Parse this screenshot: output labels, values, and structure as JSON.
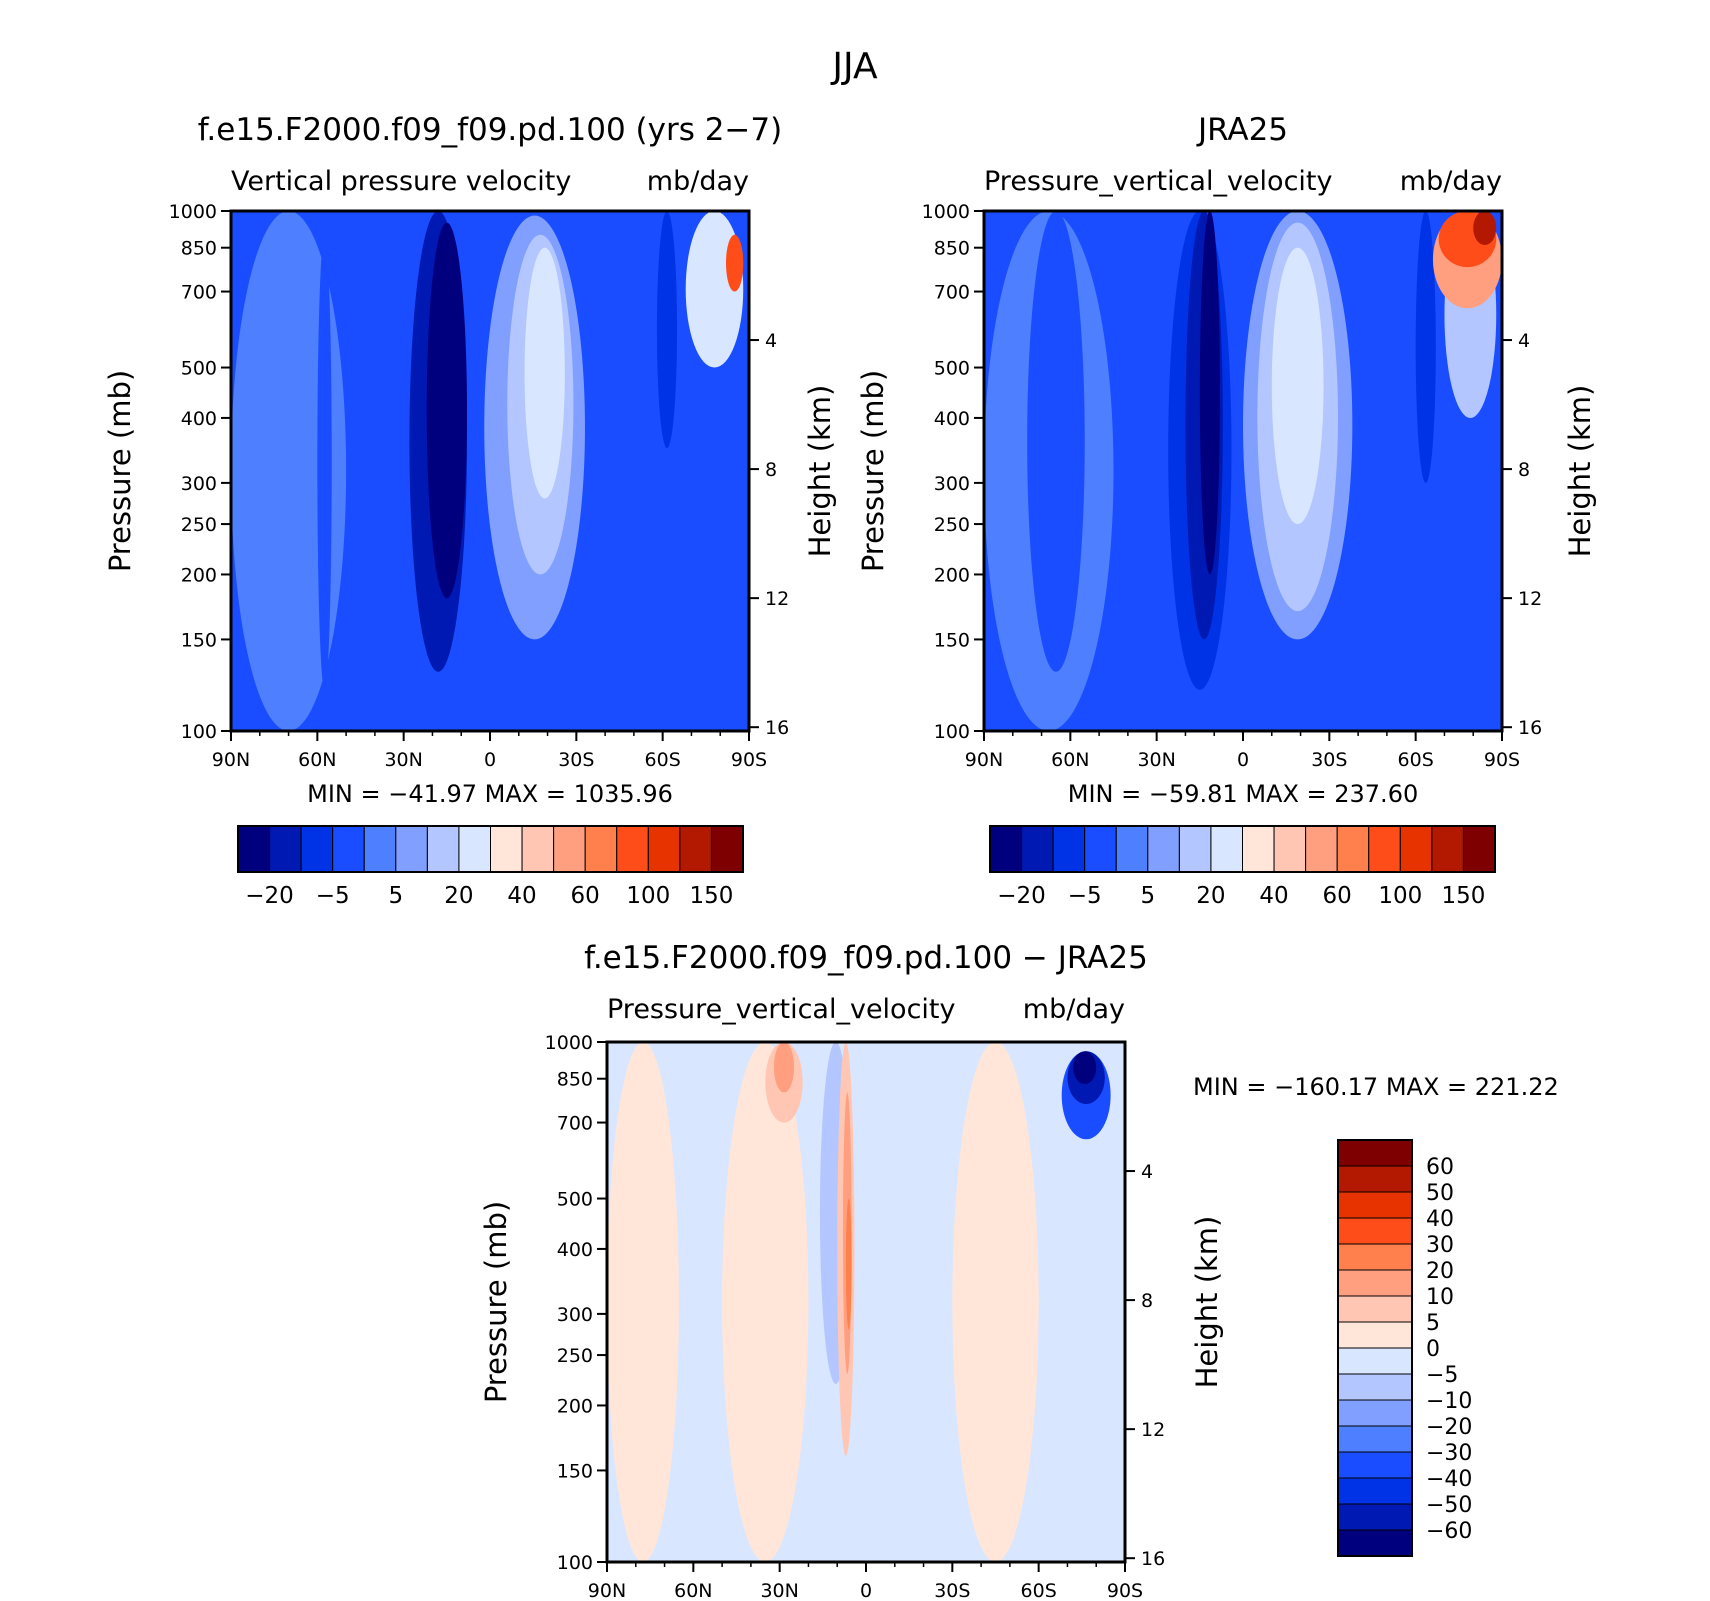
{
  "figure_title": "JJA",
  "colors": {
    "model_palette": [
      "#00007f",
      "#0019b3",
      "#0033e6",
      "#1a4dff",
      "#4d7fff",
      "#809fff",
      "#b3c6ff",
      "#d9e6ff",
      "#ffe6d9",
      "#ffc6b3",
      "#ff9f80",
      "#ff7f4d",
      "#ff4d1a",
      "#e63300",
      "#b31900",
      "#7f0000"
    ],
    "diff_palette": [
      "#00007f",
      "#0019b3",
      "#0033e6",
      "#1a4dff",
      "#4d7fff",
      "#809fff",
      "#b3c6ff",
      "#d9e6ff",
      "#ffe6d9",
      "#ffc6b3",
      "#ff9f80",
      "#ff7f4d",
      "#ff4d1a",
      "#e63300",
      "#b31900",
      "#7f0000"
    ]
  },
  "chart_data": [
    {
      "type": "heatmap",
      "title": "f.e15.F2000.f09_f09.pd.100 (yrs 2−7)",
      "subtitle_left": "Vertical pressure velocity",
      "subtitle_right": "mb/day",
      "ylabel": "Pressure (mb)",
      "ylabel_right": "Height (km)",
      "x_ticks": [
        "90N",
        "60N",
        "30N",
        "0",
        "30S",
        "60S",
        "90S"
      ],
      "y_ticks": [
        "100",
        "150",
        "200",
        "250",
        "300",
        "400",
        "500",
        "700",
        "850",
        "1000"
      ],
      "y_ticks_right": [
        "16",
        "12",
        "8",
        "4"
      ],
      "xlim": [
        90,
        -90
      ],
      "ylim": [
        1000,
        100
      ],
      "y_scale": "log",
      "stats": "MIN = −41.97   MAX = 1035.96",
      "min": -41.97,
      "max": 1035.96,
      "colorbar_labels": [
        "−20",
        "−5",
        "5",
        "20",
        "40",
        "60",
        "100",
        "150"
      ],
      "field": [
        {
          "lat": [
            90,
            50
          ],
          "p": [
            1000,
            100
          ],
          "level": 4
        },
        {
          "lat": [
            60,
            55
          ],
          "p": [
            900,
            120
          ],
          "level": 3
        },
        {
          "lat": [
            28,
            8
          ],
          "p": [
            1000,
            130
          ],
          "level": 1
        },
        {
          "lat": [
            22,
            8
          ],
          "p": [
            950,
            180
          ],
          "level": 0
        },
        {
          "lat": [
            2,
            -33
          ],
          "p": [
            980,
            150
          ],
          "level": 5
        },
        {
          "lat": [
            -6,
            -29
          ],
          "p": [
            900,
            200
          ],
          "level": 6
        },
        {
          "lat": [
            -12,
            -26
          ],
          "p": [
            850,
            280
          ],
          "level": 7
        },
        {
          "lat": [
            -58,
            -65
          ],
          "p": [
            1000,
            350
          ],
          "level": 2
        },
        {
          "lat": [
            -68,
            -88
          ],
          "p": [
            1000,
            500
          ],
          "level": 7
        },
        {
          "lat": [
            -82,
            -88
          ],
          "p": [
            900,
            700
          ],
          "level": 12
        }
      ]
    },
    {
      "type": "heatmap",
      "title": "JRA25",
      "subtitle_left": "Pressure_vertical_velocity",
      "subtitle_right": "mb/day",
      "ylabel": "Pressure (mb)",
      "ylabel_right": "Height (km)",
      "x_ticks": [
        "90N",
        "60N",
        "30N",
        "0",
        "30S",
        "60S",
        "90S"
      ],
      "y_ticks": [
        "100",
        "150",
        "200",
        "250",
        "300",
        "400",
        "500",
        "700",
        "850",
        "1000"
      ],
      "y_ticks_right": [
        "16",
        "12",
        "8",
        "4"
      ],
      "xlim": [
        90,
        -90
      ],
      "ylim": [
        1000,
        100
      ],
      "y_scale": "log",
      "stats": "MIN = −59.81   MAX = 237.60",
      "min": -59.81,
      "max": 237.6,
      "colorbar_labels": [
        "−20",
        "−5",
        "5",
        "20",
        "40",
        "60",
        "100",
        "150"
      ],
      "field": [
        {
          "lat": [
            90,
            45
          ],
          "p": [
            1000,
            100
          ],
          "level": 4
        },
        {
          "lat": [
            75,
            55
          ],
          "p": [
            1000,
            130
          ],
          "level": 3
        },
        {
          "lat": [
            26,
            4
          ],
          "p": [
            1000,
            120
          ],
          "level": 2
        },
        {
          "lat": [
            20,
            7
          ],
          "p": [
            1000,
            150
          ],
          "level": 1
        },
        {
          "lat": [
            15,
            8
          ],
          "p": [
            1000,
            200
          ],
          "level": 0
        },
        {
          "lat": [
            0,
            -38
          ],
          "p": [
            1000,
            150
          ],
          "level": 5
        },
        {
          "lat": [
            -5,
            -33
          ],
          "p": [
            950,
            170
          ],
          "level": 6
        },
        {
          "lat": [
            -10,
            -28
          ],
          "p": [
            850,
            250
          ],
          "level": 7
        },
        {
          "lat": [
            -60,
            -67
          ],
          "p": [
            1000,
            300
          ],
          "level": 2
        },
        {
          "lat": [
            -70,
            -88
          ],
          "p": [
            1000,
            400
          ],
          "level": 6
        },
        {
          "lat": [
            -66,
            -90
          ],
          "p": [
            1000,
            650
          ],
          "level": 10
        },
        {
          "lat": [
            -68,
            -88
          ],
          "p": [
            1000,
            780
          ],
          "level": 12
        },
        {
          "lat": [
            -80,
            -88
          ],
          "p": [
            1000,
            860
          ],
          "level": 14
        }
      ]
    },
    {
      "type": "heatmap",
      "title": "f.e15.F2000.f09_f09.pd.100 − JRA25",
      "subtitle_left": "Pressure_vertical_velocity",
      "subtitle_right": "mb/day",
      "ylabel": "Pressure (mb)",
      "ylabel_right": "Height (km)",
      "x_ticks": [
        "90N",
        "60N",
        "30N",
        "0",
        "30S",
        "60S",
        "90S"
      ],
      "y_ticks": [
        "100",
        "150",
        "200",
        "250",
        "300",
        "400",
        "500",
        "700",
        "850",
        "1000"
      ],
      "y_ticks_right": [
        "16",
        "12",
        "8",
        "4"
      ],
      "xlim": [
        90,
        -90
      ],
      "ylim": [
        1000,
        100
      ],
      "y_scale": "log",
      "stats": "MIN = −160.17   MAX = 221.22",
      "min": -160.17,
      "max": 221.22,
      "colorbar_labels": [
        "60",
        "50",
        "40",
        "30",
        "20",
        "10",
        "5",
        "0",
        "−5",
        "−10",
        "−20",
        "−30",
        "−40",
        "−50",
        "−60"
      ],
      "field": [
        {
          "lat": [
            90,
            65
          ],
          "p": [
            1000,
            100
          ],
          "level": 8
        },
        {
          "lat": [
            50,
            20
          ],
          "p": [
            1000,
            100
          ],
          "level": 8
        },
        {
          "lat": [
            -30,
            -60
          ],
          "p": [
            1000,
            100
          ],
          "level": 8
        },
        {
          "lat": [
            16,
            5
          ],
          "p": [
            1000,
            220
          ],
          "level": 6
        },
        {
          "lat": [
            10,
            4
          ],
          "p": [
            1000,
            160
          ],
          "level": 9
        },
        {
          "lat": [
            8,
            5
          ],
          "p": [
            800,
            230
          ],
          "level": 10
        },
        {
          "lat": [
            7,
            5
          ],
          "p": [
            500,
            280
          ],
          "level": 11
        },
        {
          "lat": [
            35,
            22
          ],
          "p": [
            1000,
            700
          ],
          "level": 9
        },
        {
          "lat": [
            32,
            25
          ],
          "p": [
            1000,
            800
          ],
          "level": 10
        },
        {
          "lat": [
            -68,
            -85
          ],
          "p": [
            960,
            650
          ],
          "level": 3
        },
        {
          "lat": [
            -70,
            -83
          ],
          "p": [
            960,
            760
          ],
          "level": 1
        },
        {
          "lat": [
            -72,
            -80
          ],
          "p": [
            960,
            830
          ],
          "level": 0
        }
      ]
    }
  ]
}
